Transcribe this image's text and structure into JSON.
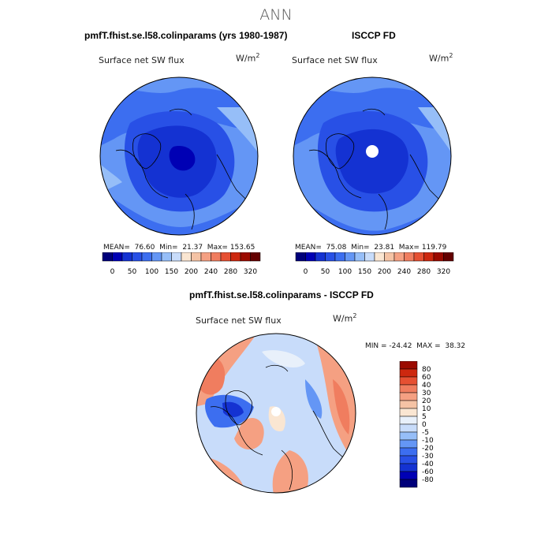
{
  "title": "ANN",
  "panels": [
    {
      "id": "model",
      "heading": "pmfT.fhist.se.l58.colinparams (yrs 1980-1987)",
      "variable": "Surface net SW flux",
      "units_base": "W/m",
      "units_exp": "2",
      "stats": "MEAN=  76.60  Min=  21.37  Max= 153.65"
    },
    {
      "id": "obs",
      "heading": "ISCCP FD",
      "variable": "Surface net SW flux",
      "units_base": "W/m",
      "units_exp": "2",
      "stats": "MEAN=  75.08  Min=  23.81  Max= 119.79"
    },
    {
      "id": "diff",
      "heading": "pmfT.fhist.se.l58.colinparams - ISCCP FD",
      "variable": "Surface net SW flux",
      "units_base": "W/m",
      "units_exp": "2",
      "stats": "MIN = -24.42  MAX =  38.32"
    }
  ],
  "colorbar_main": {
    "colors": [
      "#00007a",
      "#0000b4",
      "#1432d2",
      "#2850e6",
      "#3c6ef0",
      "#6496f5",
      "#96bef8",
      "#c8dcfa",
      "#fae6d2",
      "#f5c3a5",
      "#f5a082",
      "#f07d5f",
      "#e65032",
      "#cd280f",
      "#9b0a00",
      "#640000"
    ],
    "tick_labels": [
      "0",
      "50",
      "100",
      "150",
      "200",
      "240",
      "280",
      "320"
    ]
  },
  "colorbar_diff": {
    "colors": [
      "#00007a",
      "#0000b4",
      "#1432d2",
      "#2850e6",
      "#3c6ef0",
      "#6496f5",
      "#96bef8",
      "#c8dcfa",
      "#e8f0fa",
      "#fae6d2",
      "#f5c3a5",
      "#f5a082",
      "#f07d5f",
      "#e65032",
      "#cd280f",
      "#9b0a00"
    ],
    "tick_labels": [
      "80",
      "60",
      "40",
      "30",
      "20",
      "10",
      "5",
      "0",
      "-5",
      "-10",
      "-20",
      "-30",
      "-40",
      "-60",
      "-80"
    ]
  }
}
